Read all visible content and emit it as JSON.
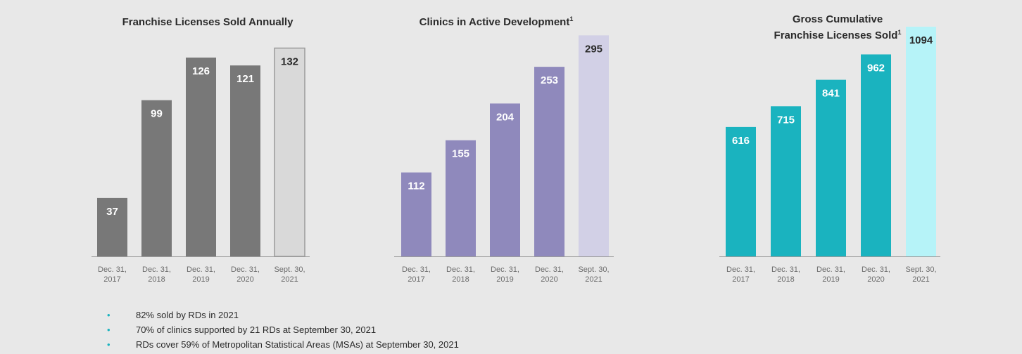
{
  "colors": {
    "background": "#e8e8e8",
    "bullet": "#1ab3bf",
    "axis": "#9c9c9c"
  },
  "chart_data": [
    {
      "type": "bar",
      "title": "Franchise Licenses Sold Annually",
      "title_superscript": "",
      "categories": [
        [
          "Dec. 31,",
          "2017"
        ],
        [
          "Dec. 31,",
          "2018"
        ],
        [
          "Dec. 31,",
          "2019"
        ],
        [
          "Dec. 31,",
          "2020"
        ],
        [
          "Sept. 30,",
          "2021"
        ]
      ],
      "values": [
        37,
        99,
        126,
        121,
        132
      ],
      "ylim": [
        0,
        138
      ],
      "bar_colors": [
        "#787878",
        "#787878",
        "#787878",
        "#787878",
        "#d9d9d9"
      ],
      "label_colors": [
        "#ffffff",
        "#ffffff",
        "#ffffff",
        "#ffffff",
        "#2b2b2b"
      ],
      "last_bar_outline": "#9a9a9a"
    },
    {
      "type": "bar",
      "title": "Clinics in Active Development",
      "title_superscript": "1",
      "categories": [
        [
          "Dec. 31,",
          "2017"
        ],
        [
          "Dec. 31,",
          "2018"
        ],
        [
          "Dec. 31,",
          "2019"
        ],
        [
          "Dec. 31,",
          "2020"
        ],
        [
          "Sept. 30,",
          "2021"
        ]
      ],
      "values": [
        112,
        155,
        204,
        253,
        295
      ],
      "ylim": [
        0,
        300
      ],
      "bar_colors": [
        "#8f89bc",
        "#8f89bc",
        "#8f89bc",
        "#8f89bc",
        "#d2d0e6"
      ],
      "label_colors": [
        "#ffffff",
        "#ffffff",
        "#ffffff",
        "#ffffff",
        "#2b2b2b"
      ],
      "last_bar_outline": ""
    },
    {
      "type": "bar",
      "title": "Gross Cumulative",
      "title_line2": "Franchise Licenses Sold",
      "title_superscript": "1",
      "categories": [
        [
          "Dec. 31,",
          "2017"
        ],
        [
          "Dec. 31,",
          "2018"
        ],
        [
          "Dec. 31,",
          "2019"
        ],
        [
          "Dec. 31,",
          "2020"
        ],
        [
          "Sept. 30,",
          "2021"
        ]
      ],
      "values": [
        616,
        715,
        841,
        962,
        1094
      ],
      "ylim": [
        0,
        1094
      ],
      "bar_colors": [
        "#1ab3bf",
        "#1ab3bf",
        "#1ab3bf",
        "#1ab3bf",
        "#b6f3f8"
      ],
      "label_colors": [
        "#ffffff",
        "#ffffff",
        "#ffffff",
        "#ffffff",
        "#2b2b2b"
      ],
      "last_bar_outline": ""
    }
  ],
  "bullets": [
    "82% sold by RDs in 2021",
    "70% of clinics supported by 21 RDs at September 30, 2021",
    "RDs cover 59% of Metropolitan Statistical Areas (MSAs) at September 30, 2021"
  ],
  "bullet_glyph": "•"
}
